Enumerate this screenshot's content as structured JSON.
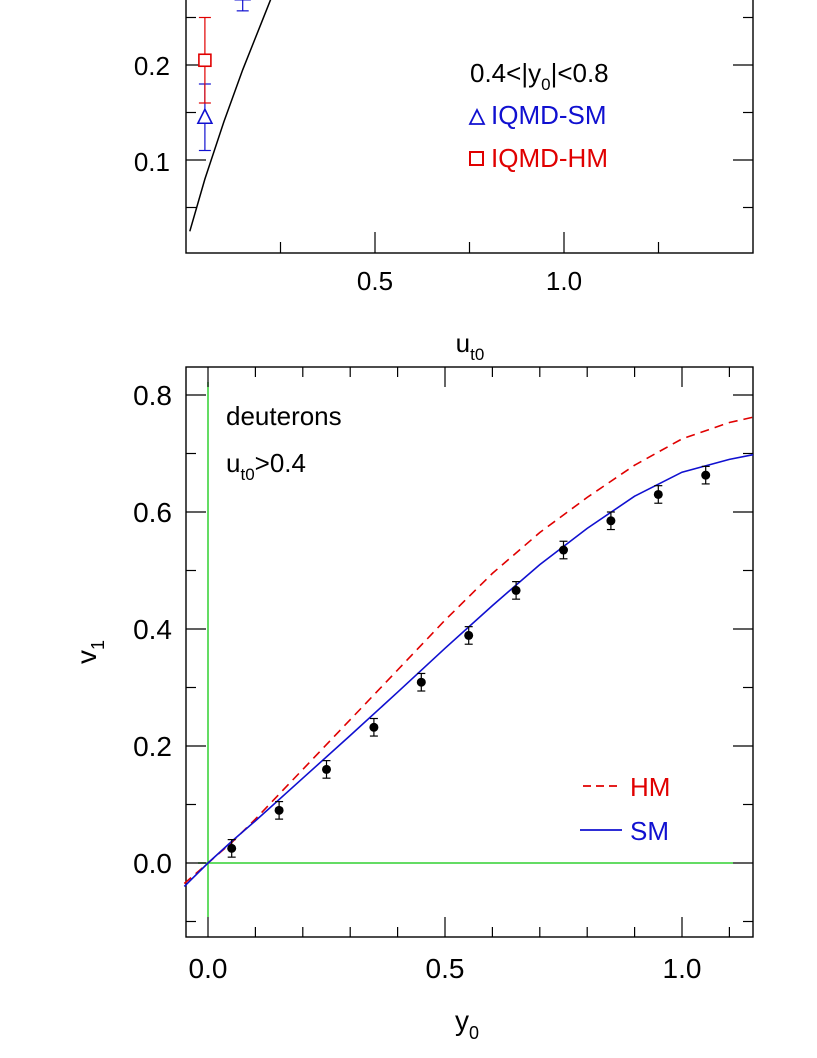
{
  "chart_data": [
    {
      "type": "scatter",
      "xlabel": "u",
      "xlabel_sub": "t0",
      "ylabel": "",
      "xticks": [
        "0.5",
        "1.0"
      ],
      "yticks": [
        "0.2",
        "0.1"
      ],
      "legend": {
        "placement": "right",
        "header": "0.4<|y",
        "header_sub": "0",
        "header_tail": "|<0.8",
        "entries": [
          {
            "label": "IQMD-SM",
            "marker": "triangle",
            "color": "#1010d0"
          },
          {
            "label": "IQMD-HM",
            "marker": "square",
            "color": "#e00000"
          }
        ]
      },
      "series": [
        {
          "name": "IQMD-SM",
          "color": "#1010d0",
          "marker": "triangle",
          "points": [
            {
              "x": 0.05,
              "y": 0.145,
              "err": 0.035
            },
            {
              "x": 0.15,
              "y": 0.275,
              "err": 0.018
            }
          ]
        },
        {
          "name": "IQMD-HM",
          "color": "#e00000",
          "marker": "square",
          "points": [
            {
              "x": 0.05,
              "y": 0.205,
              "err": 0.045
            }
          ]
        }
      ],
      "curves": [
        {
          "style": "solid",
          "color": "#000000",
          "points": [
            [
              0.01,
              0.025
            ],
            [
              0.05,
              0.08
            ],
            [
              0.1,
              0.14
            ],
            [
              0.15,
              0.195
            ],
            [
              0.2,
              0.245
            ],
            [
              0.25,
              0.295
            ],
            [
              0.3,
              0.34
            ]
          ]
        }
      ]
    },
    {
      "type": "scatter",
      "xlabel": "y",
      "xlabel_sub": "0",
      "ylabel": "v",
      "ylabel_sub": "1",
      "xlim": [
        -0.05,
        1.15
      ],
      "ylim": [
        -0.13,
        0.85
      ],
      "xticks": [
        "0.0",
        "0.5",
        "1.0"
      ],
      "yticks": [
        "0.0",
        "0.2",
        "0.4",
        "0.6",
        "0.8"
      ],
      "annotation": {
        "line1": "deuterons",
        "line2_main": "u",
        "line2_sub": "t0",
        "line2_tail": ">0.4"
      },
      "legend": {
        "placement": "bottom-right",
        "entries": [
          {
            "label": "HM",
            "style": "dashed",
            "color": "#e00000"
          },
          {
            "label": "SM",
            "style": "solid",
            "color": "#1010d0"
          }
        ]
      },
      "data_points": {
        "x": [
          0.05,
          0.15,
          0.25,
          0.35,
          0.45,
          0.55,
          0.65,
          0.75,
          0.85,
          0.95,
          1.05
        ],
        "y": [
          0.025,
          0.09,
          0.16,
          0.232,
          0.309,
          0.389,
          0.466,
          0.535,
          0.585,
          0.63,
          0.663
        ],
        "err": [
          0.015,
          0.015,
          0.015,
          0.015,
          0.015,
          0.015,
          0.015,
          0.015,
          0.015,
          0.015,
          0.015
        ]
      },
      "series": [
        {
          "name": "HM",
          "style": "dashed",
          "color": "#e00000",
          "x": [
            -0.05,
            0.0,
            0.05,
            0.1,
            0.2,
            0.3,
            0.4,
            0.5,
            0.6,
            0.7,
            0.8,
            0.9,
            1.0,
            1.1,
            1.15
          ],
          "y": [
            -0.035,
            0.0,
            0.035,
            0.075,
            0.16,
            0.245,
            0.33,
            0.415,
            0.495,
            0.565,
            0.625,
            0.68,
            0.725,
            0.753,
            0.762
          ]
        },
        {
          "name": "SM",
          "style": "solid",
          "color": "#1010d0",
          "x": [
            -0.05,
            0.0,
            0.05,
            0.1,
            0.2,
            0.3,
            0.4,
            0.5,
            0.6,
            0.7,
            0.8,
            0.9,
            1.0,
            1.1,
            1.15
          ],
          "y": [
            -0.04,
            0.0,
            0.037,
            0.072,
            0.145,
            0.218,
            0.292,
            0.367,
            0.44,
            0.51,
            0.572,
            0.627,
            0.668,
            0.69,
            0.698
          ]
        }
      ],
      "reference_lines": [
        {
          "axis": "x",
          "value": 0.0,
          "color": "#30d030"
        },
        {
          "axis": "y",
          "value": 0.0,
          "color": "#30d030"
        }
      ]
    }
  ]
}
